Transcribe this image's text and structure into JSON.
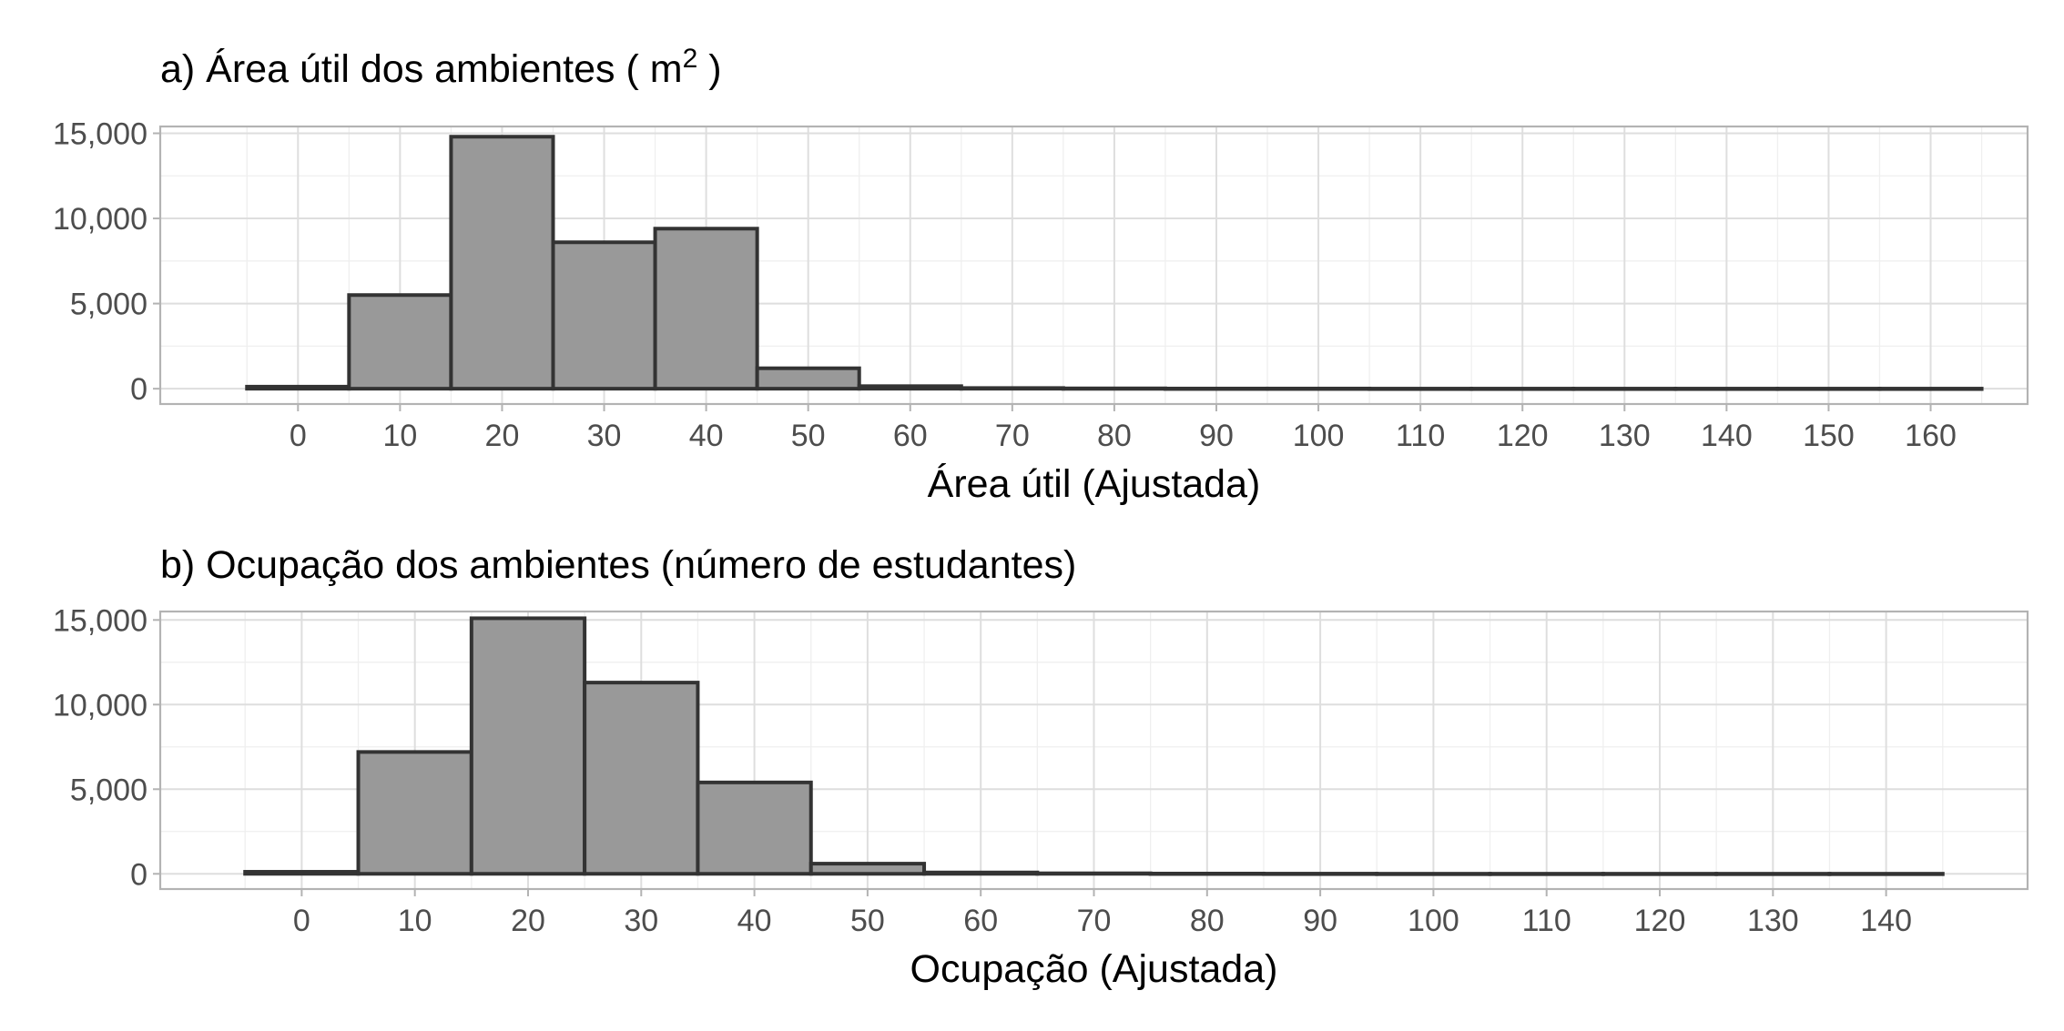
{
  "chart_data": [
    {
      "type": "bar",
      "title": "a) Área útil dos ambientes ( m",
      "title_superscript": "2",
      "title_suffix": " )",
      "xlabel": "Área útil (Ajustada)",
      "ylabel": "",
      "xlim": [
        -13.5,
        169.5
      ],
      "ylim": [
        -900,
        15400
      ],
      "x_ticks": [
        0,
        10,
        20,
        30,
        40,
        50,
        60,
        70,
        80,
        90,
        100,
        110,
        120,
        130,
        140,
        150,
        160
      ],
      "x_tick_labels": [
        "0",
        "10",
        "20",
        "30",
        "40",
        "50",
        "60",
        "70",
        "80",
        "90",
        "100",
        "110",
        "120",
        "130",
        "140",
        "150",
        "160"
      ],
      "y_ticks": [
        0,
        5000,
        10000,
        15000
      ],
      "y_tick_labels": [
        "0",
        "5,000",
        "10,000",
        "15,000"
      ],
      "bin_width": 10,
      "bin_centers": [
        0,
        10,
        20,
        30,
        40,
        50,
        60,
        70,
        80,
        90,
        100,
        110,
        120,
        130,
        140,
        150,
        160
      ],
      "values": [
        120,
        5500,
        14800,
        8600,
        9400,
        1200,
        150,
        40,
        20,
        10,
        10,
        5,
        5,
        5,
        5,
        5,
        5
      ],
      "grid": true
    },
    {
      "type": "bar",
      "title": "b) Ocupação dos ambientes (número de estudantes)",
      "title_superscript": "",
      "title_suffix": "",
      "xlabel": "Ocupação (Ajustada)",
      "ylabel": "",
      "xlim": [
        -12.5,
        152.5
      ],
      "ylim": [
        -900,
        15500
      ],
      "x_ticks": [
        0,
        10,
        20,
        30,
        40,
        50,
        60,
        70,
        80,
        90,
        100,
        110,
        120,
        130,
        140
      ],
      "x_tick_labels": [
        "0",
        "10",
        "20",
        "30",
        "40",
        "50",
        "60",
        "70",
        "80",
        "90",
        "100",
        "110",
        "120",
        "130",
        "140"
      ],
      "y_ticks": [
        0,
        5000,
        10000,
        15000
      ],
      "y_tick_labels": [
        "0",
        "5,000",
        "10,000",
        "15,000"
      ],
      "bin_width": 10,
      "bin_centers": [
        0,
        10,
        20,
        30,
        40,
        50,
        60,
        70,
        80,
        90,
        100,
        110,
        120,
        130,
        140
      ],
      "values": [
        120,
        7200,
        15100,
        11300,
        5400,
        600,
        80,
        30,
        15,
        10,
        5,
        5,
        5,
        5,
        5
      ],
      "grid": true
    }
  ]
}
